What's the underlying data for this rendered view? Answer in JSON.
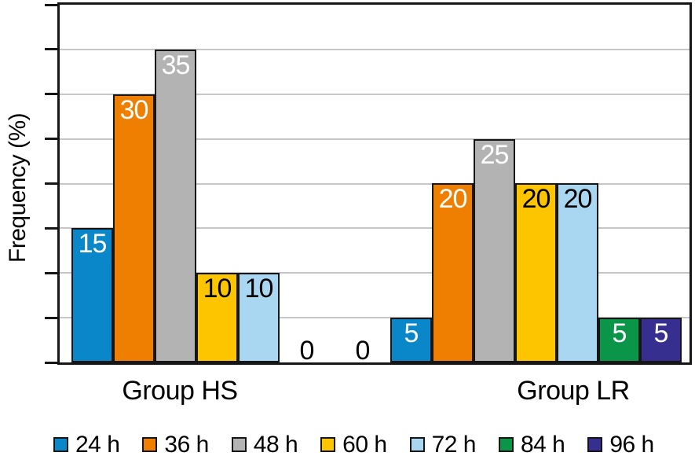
{
  "chart_data": {
    "type": "bar",
    "title": "",
    "xlabel": "",
    "ylabel": "Frequency (%)",
    "ylim": [
      0,
      40
    ],
    "ytick_interval": 5,
    "ytick_labels_shown": false,
    "grid": "horizontal",
    "legend_position": "bottom",
    "categories": [
      "Group HS",
      "Group LR"
    ],
    "series": [
      {
        "name": "24 h",
        "color": "#0a87c9",
        "label_color": "#ffffff",
        "values": [
          15,
          5
        ]
      },
      {
        "name": "36 h",
        "color": "#ee7f00",
        "label_color": "#ffffff",
        "values": [
          30,
          20
        ]
      },
      {
        "name": "48 h",
        "color": "#b3b3b3",
        "label_color": "#ffffff",
        "values": [
          35,
          25
        ]
      },
      {
        "name": "60 h",
        "color": "#fdc500",
        "label_color": "#000000",
        "values": [
          10,
          20
        ]
      },
      {
        "name": "72 h",
        "color": "#a9d7f2",
        "label_color": "#000000",
        "values": [
          10,
          20
        ]
      },
      {
        "name": "84 h",
        "color": "#0a9549",
        "label_color": "#ffffff",
        "values": [
          0,
          5
        ]
      },
      {
        "name": "96 h",
        "color": "#372f8f",
        "label_color": "#ffffff",
        "values": [
          0,
          5
        ]
      }
    ],
    "zero_label_color": "#000000"
  },
  "style": {
    "axis_color": "#161616",
    "grid_color": "#c6c6c6",
    "background": "#ffffff"
  }
}
